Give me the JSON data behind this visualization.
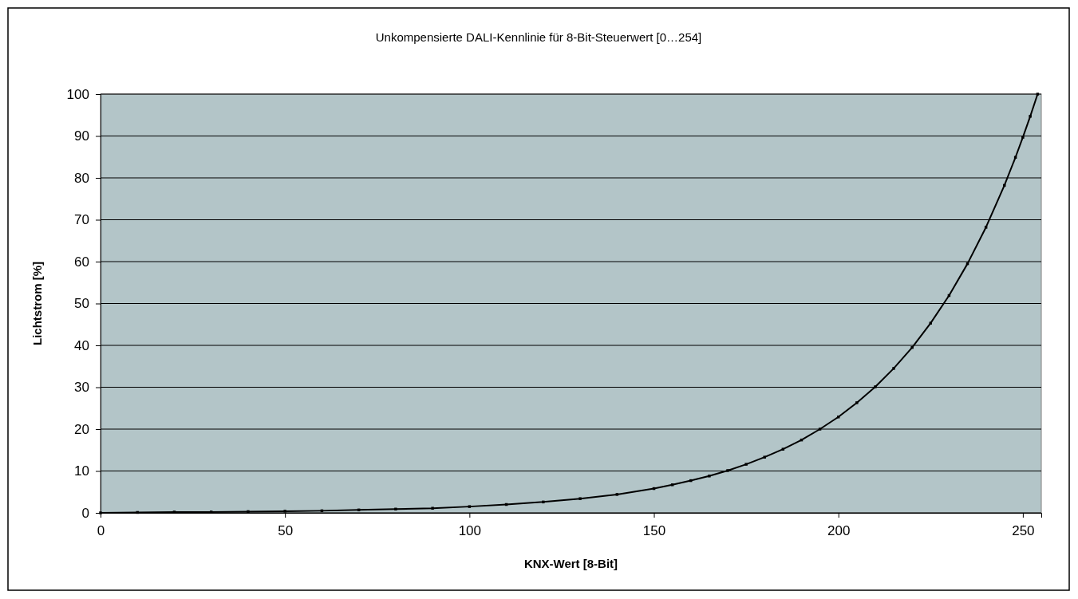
{
  "chart_data": {
    "type": "line",
    "title": "Unkompensierte DALI-Kennlinie für 8-Bit-Steuerwert [0…254]",
    "xlabel": "KNX-Wert [8-Bit]",
    "ylabel": "Lichtstrom [%]",
    "x": [
      0,
      10,
      20,
      30,
      40,
      50,
      60,
      70,
      80,
      90,
      100,
      110,
      120,
      130,
      140,
      150,
      155,
      160,
      165,
      170,
      175,
      180,
      185,
      190,
      195,
      200,
      205,
      210,
      215,
      220,
      225,
      230,
      235,
      240,
      245,
      248,
      250,
      252,
      254
    ],
    "series": [
      {
        "color": "#000000",
        "values": [
          0,
          0.1,
          0.2,
          0.2,
          0.3,
          0.4,
          0.5,
          0.7,
          0.9,
          1.1,
          1.5,
          2,
          2.6,
          3.4,
          4.4,
          5.8,
          6.7,
          7.7,
          8.8,
          10.1,
          11.6,
          13.3,
          15.2,
          17.4,
          20,
          22.9,
          26.3,
          30.1,
          34.5,
          39.5,
          45.3,
          51.9,
          59.5,
          68.2,
          78.2,
          84.9,
          89.7,
          94.7,
          100
        ]
      }
    ],
    "xlim": [
      0,
      255
    ],
    "xticks": [
      0,
      50,
      100,
      150,
      200,
      250
    ],
    "ylim": [
      0,
      100
    ],
    "yticks": [
      0,
      10,
      20,
      30,
      40,
      50,
      60,
      70,
      80,
      90,
      100
    ],
    "grid": "y",
    "marker": "square",
    "line_style": "solid"
  }
}
